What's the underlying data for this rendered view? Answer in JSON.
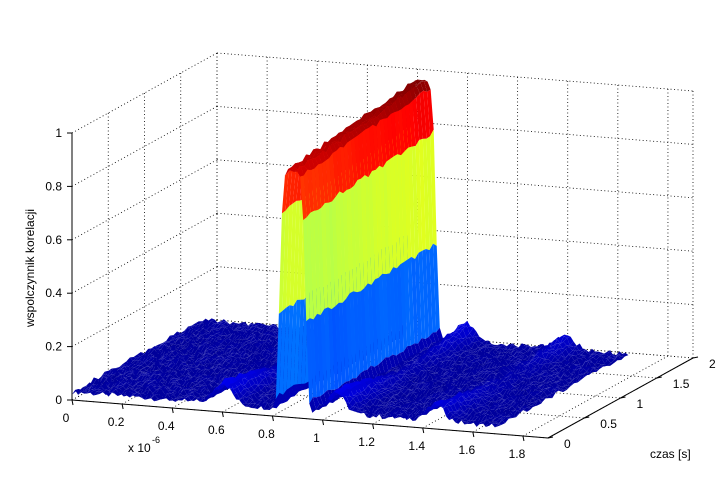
{
  "chart_data": {
    "type": "surface",
    "colormap": "jet",
    "grid": true,
    "xlabel": "",
    "x_exponent_label": "x 10",
    "x_exponent_power": "-6",
    "ylabel": "czas [s]",
    "zlabel": "wspolczynnik korelacji",
    "xlim": [
      0,
      1.9e-06
    ],
    "ylim": [
      0,
      2
    ],
    "zlim": [
      0,
      1
    ],
    "x_ticks": [
      "0",
      "0.2",
      "0.4",
      "0.6",
      "0.8",
      "1",
      "1.2",
      "1.4",
      "1.6",
      "1.8"
    ],
    "x_tick_values": [
      0,
      2e-07,
      4e-07,
      6e-07,
      8e-07,
      1e-06,
      1.2e-06,
      1.4e-06,
      1.6e-06,
      1.8e-06
    ],
    "y_ticks": [
      "0",
      "0.5",
      "1",
      "1.5",
      "2"
    ],
    "y_tick_values": [
      0,
      0.5,
      1,
      1.5,
      2
    ],
    "z_ticks": [
      "0",
      "0.2",
      "0.4",
      "0.6",
      "0.8",
      "1"
    ],
    "z_tick_values": [
      0,
      0.2,
      0.4,
      0.6,
      0.8,
      1
    ],
    "surface_profile": {
      "x_range": [
        0,
        1.7e-06
      ],
      "y_range": [
        0,
        1.8
      ],
      "peak_x": 8.8e-07,
      "peak_z_at_y_min": 0.93,
      "peak_z_at_y_max": 1.0,
      "baseline_z": 0.03,
      "side_lobes": [
        {
          "x": 6e-07,
          "z": 0.08
        },
        {
          "x": 1.05e-06,
          "z": 0.08
        },
        {
          "x": 1.45e-06,
          "z": 0.06
        }
      ]
    }
  }
}
